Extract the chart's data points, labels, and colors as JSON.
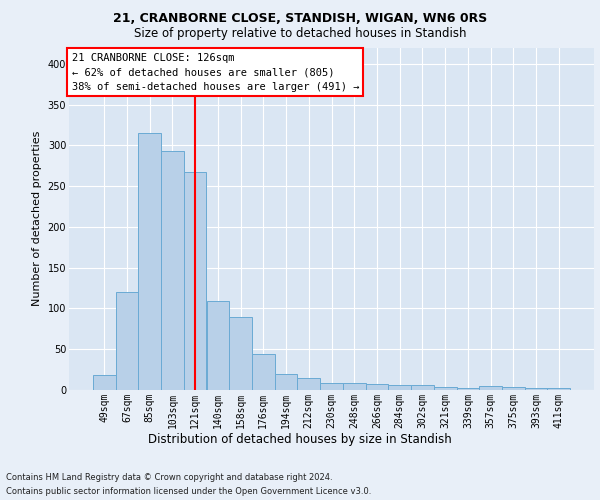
{
  "title1": "21, CRANBORNE CLOSE, STANDISH, WIGAN, WN6 0RS",
  "title2": "Size of property relative to detached houses in Standish",
  "xlabel": "Distribution of detached houses by size in Standish",
  "ylabel": "Number of detached properties",
  "categories": [
    "49sqm",
    "67sqm",
    "85sqm",
    "103sqm",
    "121sqm",
    "140sqm",
    "158sqm",
    "176sqm",
    "194sqm",
    "212sqm",
    "230sqm",
    "248sqm",
    "266sqm",
    "284sqm",
    "302sqm",
    "321sqm",
    "339sqm",
    "357sqm",
    "375sqm",
    "393sqm",
    "411sqm"
  ],
  "values": [
    18,
    120,
    315,
    293,
    267,
    109,
    89,
    44,
    20,
    15,
    9,
    8,
    7,
    6,
    6,
    4,
    2,
    5,
    4,
    2,
    3
  ],
  "bar_color": "#b8d0e8",
  "bar_edge_color": "#6aaad4",
  "bar_width": 1.0,
  "property_label": "21 CRANBORNE CLOSE: 126sqm",
  "annotation_line1": "← 62% of detached houses are smaller (805)",
  "annotation_line2": "38% of semi-detached houses are larger (491) →",
  "red_line_x": 4.0,
  "ylim": [
    0,
    420
  ],
  "yticks": [
    0,
    50,
    100,
    150,
    200,
    250,
    300,
    350,
    400
  ],
  "footnote1": "Contains HM Land Registry data © Crown copyright and database right 2024.",
  "footnote2": "Contains public sector information licensed under the Open Government Licence v3.0.",
  "background_color": "#e8eff8",
  "plot_bg_color": "#dae6f3",
  "title1_fontsize": 9,
  "title2_fontsize": 8.5,
  "xlabel_fontsize": 8.5,
  "ylabel_fontsize": 8,
  "tick_fontsize": 7,
  "footnote_fontsize": 6,
  "annot_fontsize": 7.5
}
